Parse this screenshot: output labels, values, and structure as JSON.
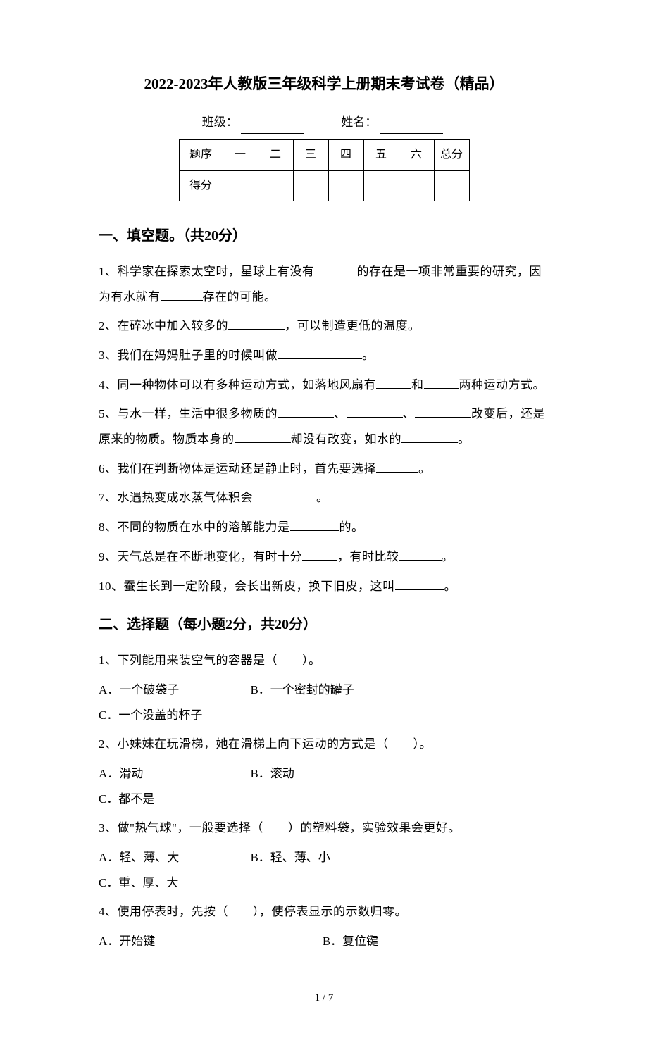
{
  "title": "2022-2023年人教版三年级科学上册期末考试卷（精品）",
  "class_label": "班级：",
  "name_label": "姓名：",
  "score_table": {
    "row1": [
      "题序",
      "一",
      "二",
      "三",
      "四",
      "五",
      "六",
      "总分"
    ],
    "row2_label": "得分"
  },
  "section1": {
    "heading": "一、填空题。（共20分）",
    "q1_a": "1、科学家在探索太空时，星球上有没有",
    "q1_b": "的存在是一项非常重要的研究，因为有水就有",
    "q1_c": "存在的可能。",
    "q2_a": "2、在碎冰中加入较多的",
    "q2_b": "，可以制造更低的温度。",
    "q3_a": "3、我们在妈妈肚子里的时候叫做",
    "q3_b": "。",
    "q4_a": "4、同一种物体可以有多种运动方式，如落地风扇有",
    "q4_b": "和",
    "q4_c": "两种运动方式。",
    "q5_a": "5、与水一样，生活中很多物质的",
    "q5_b": "、",
    "q5_c": "、",
    "q5_d": "改变后，还是原来的物质。物质本身的",
    "q5_e": "却没有改变，如水的",
    "q5_f": "。",
    "q6_a": "6、我们在判断物体是运动还是静止时，首先要选择",
    "q6_b": "。",
    "q7_a": "7、水遇热变成水蒸气体积会",
    "q7_b": "。",
    "q8_a": "8、不同的物质在水中的溶解能力是",
    "q8_b": "的。",
    "q9_a": "9、天气总是在不断地变化，有时十分",
    "q9_b": "，有时比较",
    "q9_c": "。",
    "q10_a": "10、蚕生长到一定阶段，会长出新皮，换下旧皮，这叫",
    "q10_b": "。"
  },
  "section2": {
    "heading": "二、选择题（每小题2分，共20分）",
    "q1": "1、下列能用来装空气的容器是（　　）。",
    "q1_a": "A．一个破袋子",
    "q1_b": "B．一个密封的罐子",
    "q1_c": "C．一个没盖的杯子",
    "q2": "2、小妹妹在玩滑梯，她在滑梯上向下运动的方式是（　　）。",
    "q2_a": "A．滑动",
    "q2_b": "B．滚动",
    "q2_c": "C．都不是",
    "q3": "3、做\"热气球\"，一般要选择（　　）的塑料袋，实验效果会更好。",
    "q3_a": "A．轻、薄、大",
    "q3_b": "B．轻、薄、小",
    "q3_c": "C．重、厚、大",
    "q4": "4、使用停表时，先按（　　），使停表显示的示数归零。",
    "q4_a": "A．开始键",
    "q4_b": "B．复位键"
  },
  "footer": "1 / 7"
}
